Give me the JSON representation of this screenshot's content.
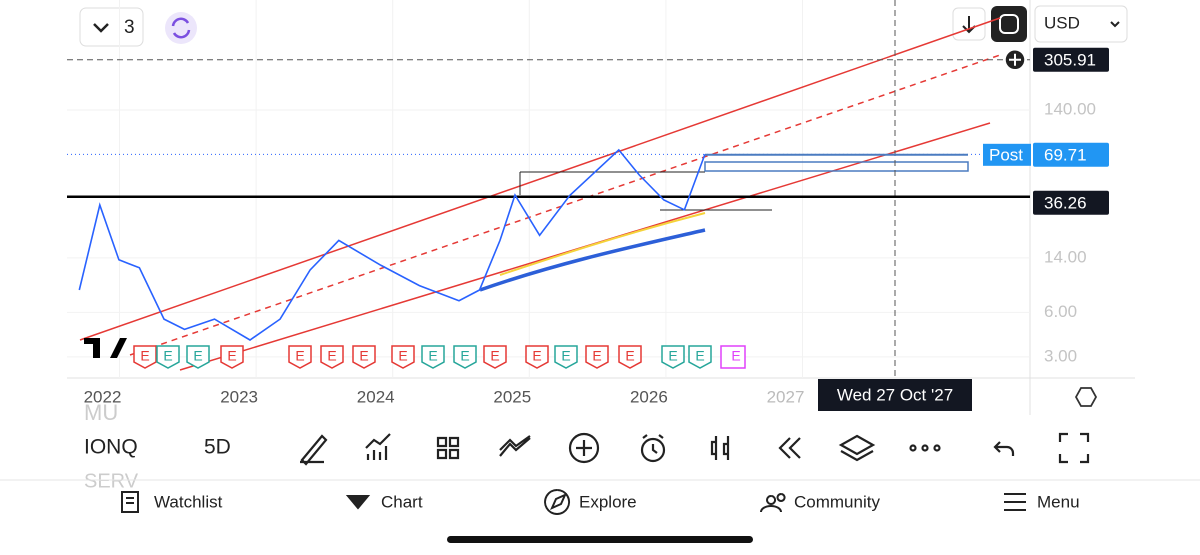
{
  "top_bar": {
    "layout_count": "3",
    "currency": "USD"
  },
  "chart_data": {
    "type": "line",
    "log_scale": true,
    "grid": true,
    "x": [
      2021.83,
      2021.98,
      2022.12,
      2022.27,
      2022.45,
      2022.6,
      2022.82,
      2023.08,
      2023.3,
      2023.52,
      2023.73,
      2024.03,
      2024.32,
      2024.61,
      2024.76,
      2024.91,
      2025.02,
      2025.2,
      2025.42,
      2025.78,
      2025.93,
      2026.11,
      2026.26,
      2026.41
    ],
    "series": [
      {
        "name": "IONQ",
        "color": "#2962ff",
        "values": [
          8.5,
          31.9,
          13.6,
          12,
          5.4,
          4.6,
          5.4,
          3.9,
          5.4,
          11.6,
          18.4,
          12.6,
          9.1,
          7.2,
          8.5,
          18.4,
          37.3,
          19.9,
          37,
          75.3,
          50.9,
          34.5,
          29.6,
          70.14
        ]
      }
    ],
    "xlim": [
      2021.74,
      2028.79
    ],
    "xticks": [
      2022,
      2023,
      2024,
      2025,
      2026,
      2027
    ],
    "ylim": [
      2.16,
      776
    ],
    "yticks": [
      {
        "value": 140,
        "label": "140.00"
      },
      {
        "value": 14,
        "label": "14.00"
      },
      {
        "value": 6,
        "label": "6.00"
      },
      {
        "value": 3,
        "label": "3.00"
      }
    ],
    "crosshair_price": 305.91,
    "crosshair_date": "Wed 27 Oct '27",
    "last_price": 70.14,
    "post_market": {
      "label": "Post",
      "value": 69.71
    },
    "level_price": 36.26,
    "earnings_label": "E"
  },
  "symbols": [
    "MU",
    "IONQ",
    "SERV"
  ],
  "interval": "5D",
  "nav": [
    "Watchlist",
    "Chart",
    "Explore",
    "Community",
    "Menu"
  ]
}
